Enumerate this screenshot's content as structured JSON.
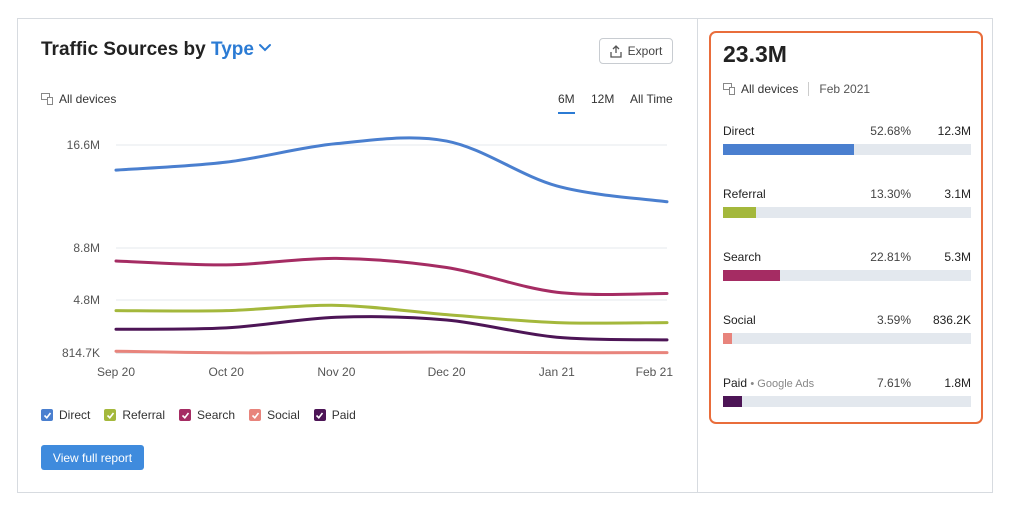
{
  "widget": {
    "title_prefix": "Traffic Sources by",
    "title_link": "Type",
    "export_label": "Export",
    "devices_label": "All devices",
    "range_tabs": [
      "6M",
      "12M",
      "All Time"
    ],
    "active_range": "6M",
    "view_report_label": "View full report"
  },
  "legend": [
    {
      "label": "Direct",
      "color": "#4a7fcf"
    },
    {
      "label": "Referral",
      "color": "#a4b83c"
    },
    {
      "label": "Search",
      "color": "#a52c63"
    },
    {
      "label": "Social",
      "color": "#e8847c"
    },
    {
      "label": "Paid",
      "color": "#4d1556"
    }
  ],
  "chart_data": {
    "type": "line",
    "x": [
      "Sep 20",
      "Oct 20",
      "Nov 20",
      "Dec 20",
      "Jan 21",
      "Feb 21"
    ],
    "y_ticks": [
      "814.7K",
      "4.8M",
      "8.8M",
      "16.6M"
    ],
    "series": [
      {
        "name": "Direct",
        "color": "#4a7fcf",
        "values": [
          14.7,
          15.3,
          16.7,
          16.9,
          13.5,
          12.3
        ]
      },
      {
        "name": "Search",
        "color": "#a52c63",
        "values": [
          7.8,
          7.5,
          8.0,
          7.3,
          5.4,
          5.3
        ]
      },
      {
        "name": "Referral",
        "color": "#a4b83c",
        "values": [
          4.0,
          4.0,
          4.4,
          3.7,
          3.1,
          3.1
        ]
      },
      {
        "name": "Paid",
        "color": "#4d1556",
        "values": [
          2.6,
          2.7,
          3.5,
          3.3,
          2.0,
          1.8
        ]
      },
      {
        "name": "Social",
        "color": "#e8847c",
        "values": [
          0.95,
          0.83,
          0.85,
          0.88,
          0.84,
          0.84
        ]
      }
    ]
  },
  "panel": {
    "total": "23.3M",
    "devices_label": "All devices",
    "date": "Feb 2021",
    "rows": [
      {
        "name": "Direct",
        "sub": "",
        "pct": "52.68%",
        "value": "12.3M",
        "share": 0.5268,
        "color": "#4a7fcf"
      },
      {
        "name": "Referral",
        "sub": "",
        "pct": "13.30%",
        "value": "3.1M",
        "share": 0.133,
        "color": "#a4b83c"
      },
      {
        "name": "Search",
        "sub": "",
        "pct": "22.81%",
        "value": "5.3M",
        "share": 0.2281,
        "color": "#a52c63"
      },
      {
        "name": "Social",
        "sub": "",
        "pct": "3.59%",
        "value": "836.2K",
        "share": 0.0359,
        "color": "#e8847c"
      },
      {
        "name": "Paid",
        "sub": "• Google Ads",
        "pct": "7.61%",
        "value": "1.8M",
        "share": 0.0761,
        "color": "#4d1556"
      }
    ]
  }
}
